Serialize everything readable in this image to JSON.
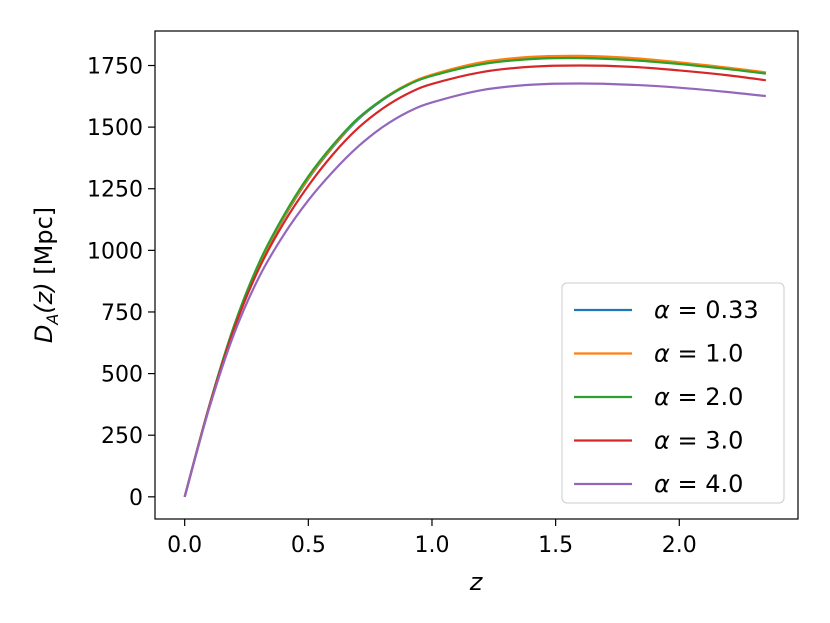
{
  "chart_data": {
    "type": "line",
    "xlabel": "z",
    "ylabel_main": "D",
    "ylabel_sub": "A",
    "ylabel_rest": "(z)",
    "ylabel_unit": " [Mpc]",
    "xlim": [
      -0.12,
      2.48
    ],
    "ylim": [
      -90,
      1890
    ],
    "xticks": [
      0.0,
      0.5,
      1.0,
      1.5,
      2.0
    ],
    "xtick_labels": [
      "0.0",
      "0.5",
      "1.0",
      "1.5",
      "2.0"
    ],
    "yticks": [
      0,
      250,
      500,
      750,
      1000,
      1250,
      1500,
      1750
    ],
    "ytick_labels": [
      "0",
      "250",
      "500",
      "750",
      "1000",
      "1250",
      "1500",
      "1750"
    ],
    "grid": false,
    "legend_position": "lower-right",
    "x": [
      0.0,
      0.1,
      0.2,
      0.3,
      0.4,
      0.5,
      0.6,
      0.7,
      0.8,
      0.9,
      1.0,
      1.2,
      1.4,
      1.6,
      1.8,
      2.0,
      2.2,
      2.35
    ],
    "series": [
      {
        "name": "α = 0.33",
        "color": "#1f77b4",
        "values": [
          0,
          370,
          690,
          940,
          1130,
          1290,
          1420,
          1530,
          1610,
          1670,
          1710,
          1760,
          1782,
          1786,
          1778,
          1760,
          1738,
          1718
        ]
      },
      {
        "name": "α = 1.0",
        "color": "#ff7f0e",
        "values": [
          0,
          371,
          692,
          943,
          1133,
          1293,
          1423,
          1533,
          1613,
          1673,
          1713,
          1763,
          1785,
          1789,
          1781,
          1763,
          1741,
          1722
        ]
      },
      {
        "name": "α = 2.0",
        "color": "#2ca02c",
        "values": [
          0,
          372,
          695,
          948,
          1140,
          1300,
          1428,
          1535,
          1612,
          1670,
          1708,
          1755,
          1776,
          1780,
          1772,
          1756,
          1735,
          1717
        ]
      },
      {
        "name": "α = 3.0",
        "color": "#d62728",
        "values": [
          0,
          368,
          682,
          925,
          1110,
          1262,
          1390,
          1495,
          1575,
          1635,
          1675,
          1723,
          1745,
          1750,
          1745,
          1730,
          1710,
          1690
        ]
      },
      {
        "name": "α = 4.0",
        "color": "#9467bd",
        "values": [
          0,
          362,
          662,
          890,
          1062,
          1203,
          1320,
          1420,
          1500,
          1560,
          1600,
          1650,
          1672,
          1677,
          1672,
          1660,
          1642,
          1626
        ]
      }
    ],
    "legend_labels": [
      {
        "greek": "α",
        "rest": " = 0.33"
      },
      {
        "greek": "α",
        "rest": " = 1.0"
      },
      {
        "greek": "α",
        "rest": " = 2.0"
      },
      {
        "greek": "α",
        "rest": " = 3.0"
      },
      {
        "greek": "α",
        "rest": " = 4.0"
      }
    ]
  }
}
